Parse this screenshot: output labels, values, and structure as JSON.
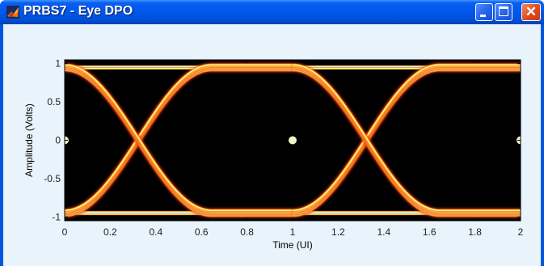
{
  "window": {
    "title": "PRBS7 - Eye DPO",
    "minimize_glyph": "_",
    "maximize_glyph": "□",
    "close_glyph": "✕"
  },
  "chart_data": {
    "type": "eye-diagram",
    "xlabel": "Time (UI)",
    "ylabel": "Amplitude (Volts)",
    "xlim": [
      0,
      2
    ],
    "ylim": [
      -1.05,
      1.05
    ],
    "x_ticks": [
      0,
      0.2,
      0.4,
      0.6,
      0.8,
      1,
      1.2,
      1.4,
      1.6,
      1.8,
      2
    ],
    "x_tick_labels": [
      "0",
      "0.2",
      "0.4",
      "0.6",
      "0.8",
      "1",
      "1.2",
      "1.4",
      "1.6",
      "1.8",
      "2"
    ],
    "y_ticks": [
      1,
      0.5,
      0,
      -0.5,
      -1
    ],
    "y_tick_labels": [
      "1",
      "0.5",
      "0",
      "-0.5",
      "-1"
    ],
    "levels": {
      "high": 0.95,
      "low": -0.95
    },
    "crossings": [
      0,
      1,
      2
    ],
    "colormap": [
      "#000000",
      "#8b1a00",
      "#e8380a",
      "#ff9a1e",
      "#ffe94a",
      "#ffffd0"
    ],
    "background": "#000000"
  }
}
